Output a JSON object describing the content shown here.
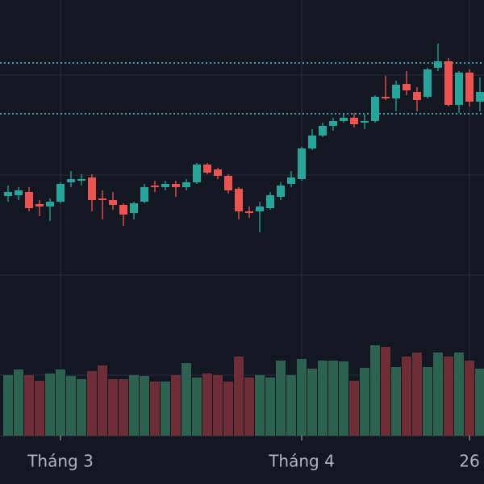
{
  "chart_data": {
    "type": "candlestick",
    "categories": [
      null,
      null,
      null,
      null,
      null,
      "Tháng 3",
      null,
      null,
      null,
      null,
      null,
      null,
      null,
      null,
      null,
      null,
      null,
      null,
      null,
      null,
      null,
      null,
      null,
      null,
      null,
      null,
      null,
      null,
      "Tháng 4",
      null,
      null,
      null,
      null,
      null,
      null,
      null,
      null,
      null,
      null,
      null,
      null,
      null,
      null,
      null,
      "26",
      null
    ],
    "open": [
      357,
      358,
      362,
      347,
      344,
      350,
      374,
      376,
      380,
      354,
      352,
      346,
      336,
      350,
      370,
      368,
      372,
      368,
      374,
      396,
      390,
      382,
      366,
      338,
      338,
      342,
      356,
      372,
      378,
      416,
      432,
      444,
      450,
      454,
      448,
      450,
      480,
      478,
      496,
      486,
      480,
      516,
      524,
      470,
      510,
      474
    ],
    "high": [
      370,
      368,
      368,
      352,
      354,
      374,
      388,
      384,
      384,
      364,
      362,
      348,
      350,
      372,
      376,
      376,
      376,
      378,
      398,
      398,
      392,
      384,
      368,
      344,
      350,
      362,
      374,
      388,
      418,
      440,
      448,
      454,
      458,
      460,
      458,
      482,
      506,
      500,
      512,
      492,
      516,
      546,
      528,
      512,
      514,
      504
    ],
    "low": [
      350,
      352,
      338,
      332,
      326,
      348,
      368,
      370,
      338,
      328,
      340,
      320,
      328,
      348,
      362,
      364,
      356,
      364,
      372,
      384,
      378,
      360,
      328,
      330,
      312,
      340,
      352,
      368,
      376,
      414,
      430,
      438,
      448,
      442,
      440,
      448,
      476,
      462,
      482,
      462,
      478,
      512,
      468,
      460,
      468,
      462
    ],
    "close": [
      362,
      364,
      342,
      344,
      350,
      372,
      378,
      378,
      352,
      352,
      346,
      334,
      348,
      368,
      368,
      372,
      368,
      374,
      396,
      386,
      382,
      364,
      338,
      336,
      344,
      358,
      370,
      380,
      416,
      432,
      444,
      450,
      454,
      446,
      450,
      480,
      478,
      495,
      488,
      476,
      514,
      524,
      470,
      510,
      474,
      486
    ],
    "volume": [
      75,
      82,
      75,
      68,
      77,
      82,
      74,
      70,
      80,
      87,
      70,
      70,
      75,
      74,
      67,
      67,
      75,
      90,
      72,
      77,
      75,
      67,
      98,
      72,
      75,
      72,
      93,
      75,
      95,
      83,
      93,
      93,
      92,
      68,
      84,
      112,
      110,
      85,
      98,
      103,
      85,
      103,
      98,
      103,
      93,
      83
    ],
    "ylim": [
      60,
      600
    ],
    "yticks": [
      135,
      259,
      383,
      507
    ],
    "volume_ylim": [
      0,
      540
    ],
    "price_lines": [
      522,
      459
    ],
    "up_color": "#26a69a",
    "down_color": "#ef5350",
    "volume_up_color": "#2d6150",
    "volume_down_color": "#6e2d37",
    "price_line_color": "#4dd0e1",
    "grid": true
  }
}
